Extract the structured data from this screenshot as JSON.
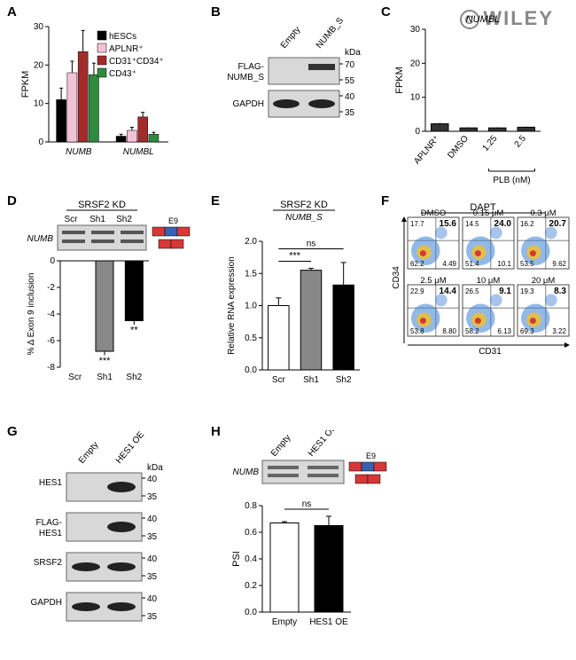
{
  "watermark": "WILEY",
  "panelA": {
    "label": "A",
    "ylabel": "FPKM",
    "ymax": 30,
    "ytick": 10,
    "groups": [
      "NUMB",
      "NUMBL"
    ],
    "series": [
      {
        "name": "hESCs",
        "color": "#000000"
      },
      {
        "name": "APLNR⁺",
        "color": "#f4c2d7"
      },
      {
        "name": "CD31⁺CD34⁺",
        "color": "#a52a2a"
      },
      {
        "name": "CD43⁺",
        "color": "#2e8b3e"
      }
    ],
    "values": {
      "NUMB": [
        11,
        18,
        23.5,
        17.5
      ],
      "NUMBL": [
        1.5,
        3,
        6.5,
        2
      ]
    },
    "errors": {
      "NUMB": [
        3,
        3,
        5.5,
        3
      ],
      "NUMBL": [
        0.5,
        0.8,
        1.2,
        0.5
      ]
    }
  },
  "panelB": {
    "label": "B",
    "lanes": [
      "Empty",
      "NUMB_S"
    ],
    "row1": "FLAG-\nNUMB_S",
    "row2": "GAPDH",
    "kda": [
      "70",
      "55",
      "40",
      "35"
    ]
  },
  "panelC": {
    "label": "C",
    "title": "NUMBL",
    "ylabel": "FPKM",
    "ymax": 30,
    "ytick": 10,
    "categories": [
      "APLNR⁺",
      "DMSO",
      "1.25",
      "2.5"
    ],
    "bracket": "PLB (nM)",
    "values": [
      2.2,
      1.0,
      1.0,
      1.2
    ],
    "errors": [
      0.3,
      0.2,
      0.2,
      0.2
    ],
    "colors": [
      "#333333",
      "#333333",
      "#333333",
      "#333333"
    ]
  },
  "panelD": {
    "label": "D",
    "title": "SRSF2 KD",
    "lanes": [
      "Scr",
      "Sh1",
      "Sh2"
    ],
    "gene": "NUMB",
    "exon": "E9",
    "ylabel": "% Δ Exon 9 inclusion",
    "ymin": -8,
    "ymax": 0,
    "ytick": 2,
    "values": [
      0,
      -6.8,
      -4.5
    ],
    "errors": [
      0,
      0.3,
      0.3
    ],
    "colors": [
      "#ffffff",
      "#888888",
      "#000000"
    ],
    "sig": [
      "",
      "***",
      "**"
    ]
  },
  "panelE": {
    "label": "E",
    "title": "SRSF2 KD",
    "subtitle": "NUMB_S",
    "ylabel": "Relative RNA expression",
    "ymax": 2.0,
    "ytick": 0.5,
    "categories": [
      "Scr",
      "Sh1",
      "Sh2"
    ],
    "values": [
      1.0,
      1.55,
      1.32
    ],
    "errors": [
      0.12,
      0.03,
      0.35
    ],
    "colors": [
      "#ffffff",
      "#888888",
      "#000000"
    ],
    "sig": [
      [
        "Scr",
        "Sh1",
        "***"
      ],
      [
        "Scr",
        "Sh2",
        "ns"
      ]
    ]
  },
  "panelF": {
    "label": "F",
    "title": "DAPT",
    "xaxis": "CD31",
    "yaxis": "CD34",
    "plots": [
      {
        "cond": "DMSO",
        "tl": "17.7",
        "tr": "15.6",
        "bl": "62.2",
        "br": "4.49"
      },
      {
        "cond": "0.15 μM",
        "tl": "14.5",
        "tr": "24.0",
        "bl": "51.4",
        "br": "10.1"
      },
      {
        "cond": "0.3 μM",
        "tl": "16.2",
        "tr": "20.7",
        "bl": "53.5",
        "br": "9.62"
      },
      {
        "cond": "2.5 μM",
        "tl": "22.9",
        "tr": "14.4",
        "bl": "53.8",
        "br": "8.80"
      },
      {
        "cond": "10 μM",
        "tl": "26.5",
        "tr": "9.1",
        "bl": "58.2",
        "br": "6.13"
      },
      {
        "cond": "20 μM",
        "tl": "19.3",
        "tr": "8.3",
        "bl": "69.3",
        "br": "3.22"
      }
    ]
  },
  "panelG": {
    "label": "G",
    "lanes": [
      "Empty",
      "HES1 OE"
    ],
    "rows": [
      "HES1",
      "FLAG-\nHES1",
      "SRSF2",
      "GAPDH"
    ],
    "kda": [
      [
        "40",
        "35"
      ],
      [
        "40",
        "35"
      ],
      [
        "40",
        "35"
      ],
      [
        "40",
        "35"
      ]
    ]
  },
  "panelH": {
    "label": "H",
    "lanes": [
      "Empty",
      "HES1 OE"
    ],
    "gene": "NUMB",
    "exon": "E9",
    "ylabel": "PSI",
    "ymax": 0.8,
    "ytick": 0.2,
    "values": [
      0.67,
      0.65
    ],
    "errors": [
      0.01,
      0.07
    ],
    "colors": [
      "#ffffff",
      "#000000"
    ],
    "sig": "ns"
  },
  "exon_colors": {
    "center": "#3b5fb2",
    "outer": "#d63838"
  }
}
